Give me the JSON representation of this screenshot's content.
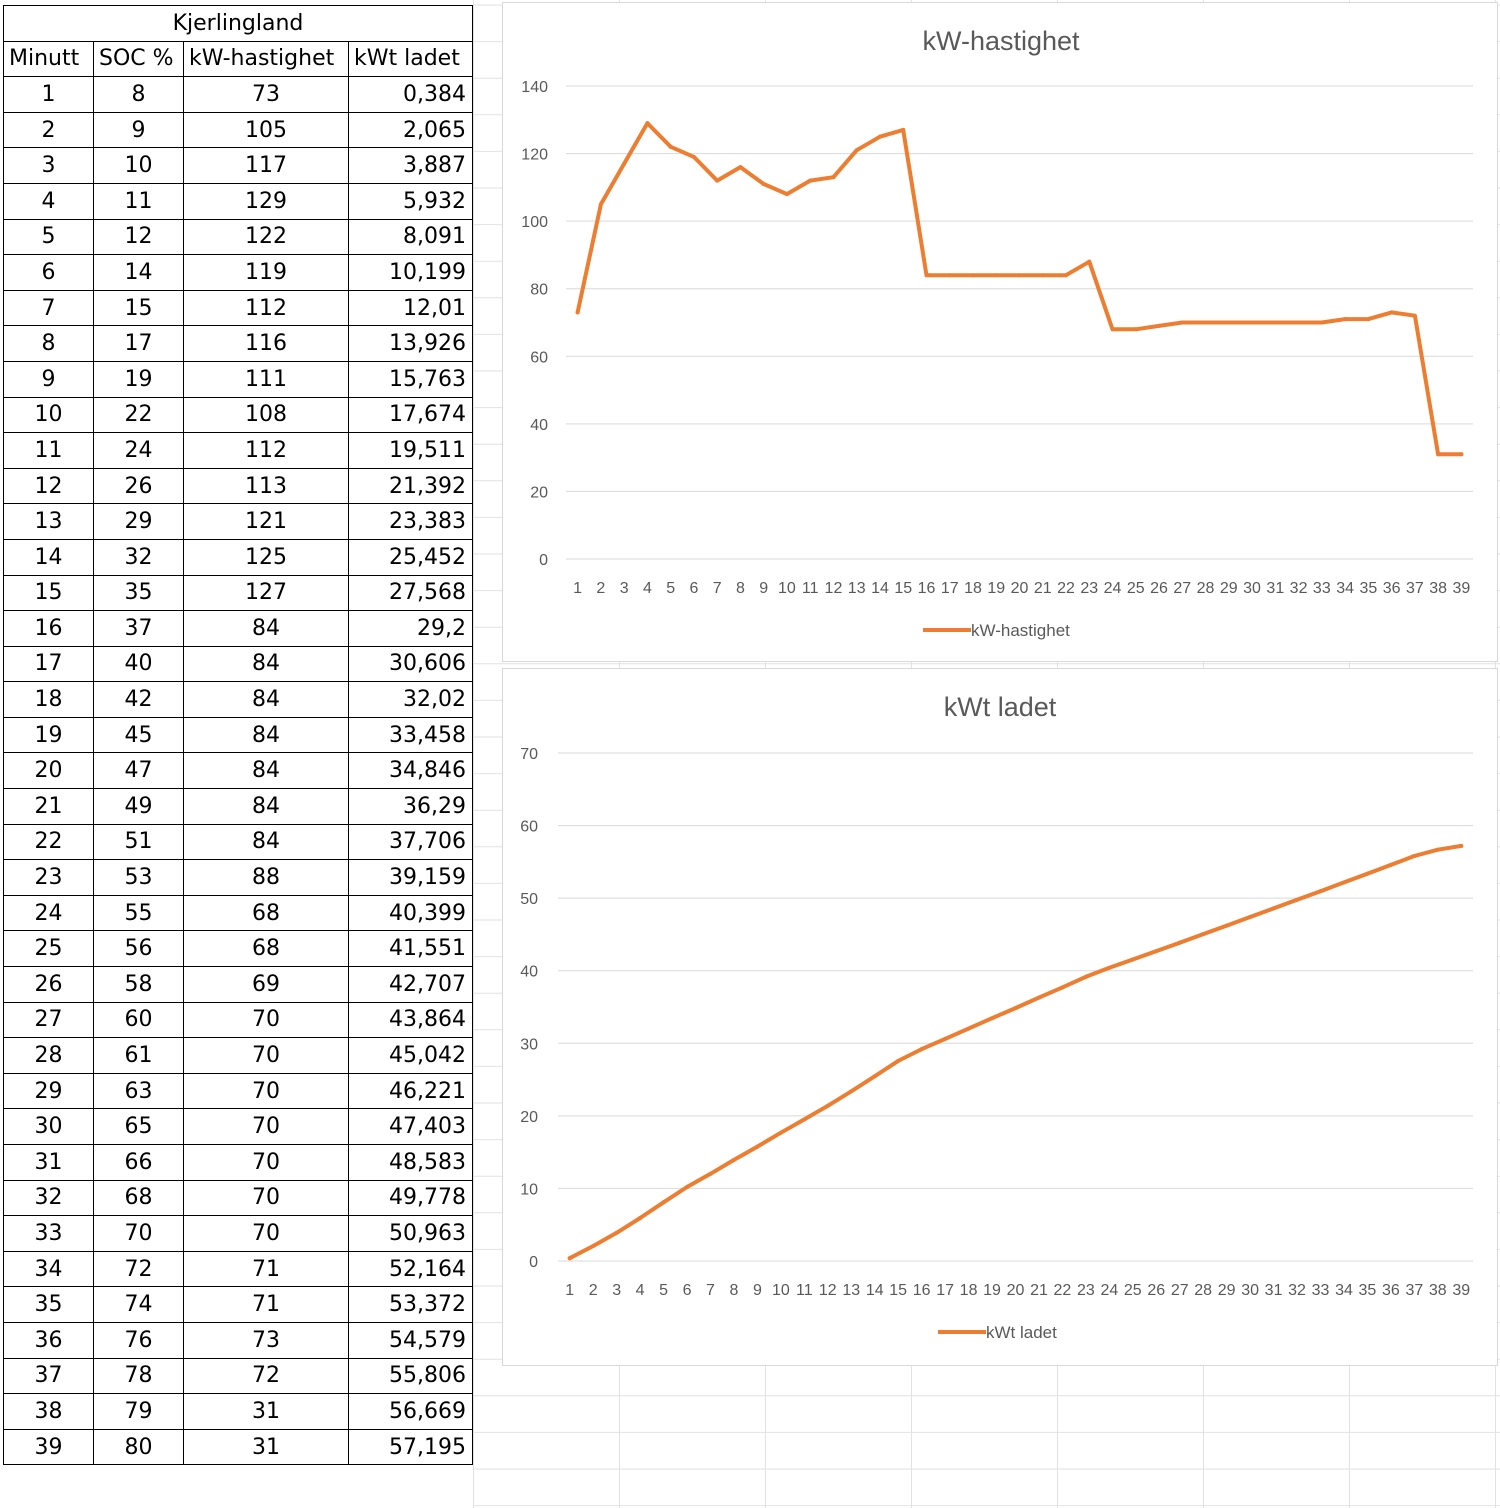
{
  "table": {
    "title": "Kjerlingland",
    "headers": [
      "Minutt",
      "SOC %",
      "kW-hastighet",
      "kWt ladet"
    ],
    "rows": [
      [
        "1",
        "8",
        "73",
        "0,384"
      ],
      [
        "2",
        "9",
        "105",
        "2,065"
      ],
      [
        "3",
        "10",
        "117",
        "3,887"
      ],
      [
        "4",
        "11",
        "129",
        "5,932"
      ],
      [
        "5",
        "12",
        "122",
        "8,091"
      ],
      [
        "6",
        "14",
        "119",
        "10,199"
      ],
      [
        "7",
        "15",
        "112",
        "12,01"
      ],
      [
        "8",
        "17",
        "116",
        "13,926"
      ],
      [
        "9",
        "19",
        "111",
        "15,763"
      ],
      [
        "10",
        "22",
        "108",
        "17,674"
      ],
      [
        "11",
        "24",
        "112",
        "19,511"
      ],
      [
        "12",
        "26",
        "113",
        "21,392"
      ],
      [
        "13",
        "29",
        "121",
        "23,383"
      ],
      [
        "14",
        "32",
        "125",
        "25,452"
      ],
      [
        "15",
        "35",
        "127",
        "27,568"
      ],
      [
        "16",
        "37",
        "84",
        "29,2"
      ],
      [
        "17",
        "40",
        "84",
        "30,606"
      ],
      [
        "18",
        "42",
        "84",
        "32,02"
      ],
      [
        "19",
        "45",
        "84",
        "33,458"
      ],
      [
        "20",
        "47",
        "84",
        "34,846"
      ],
      [
        "21",
        "49",
        "84",
        "36,29"
      ],
      [
        "22",
        "51",
        "84",
        "37,706"
      ],
      [
        "23",
        "53",
        "88",
        "39,159"
      ],
      [
        "24",
        "55",
        "68",
        "40,399"
      ],
      [
        "25",
        "56",
        "68",
        "41,551"
      ],
      [
        "26",
        "58",
        "69",
        "42,707"
      ],
      [
        "27",
        "60",
        "70",
        "43,864"
      ],
      [
        "28",
        "61",
        "70",
        "45,042"
      ],
      [
        "29",
        "63",
        "70",
        "46,221"
      ],
      [
        "30",
        "65",
        "70",
        "47,403"
      ],
      [
        "31",
        "66",
        "70",
        "48,583"
      ],
      [
        "32",
        "68",
        "70",
        "49,778"
      ],
      [
        "33",
        "70",
        "70",
        "50,963"
      ],
      [
        "34",
        "72",
        "71",
        "52,164"
      ],
      [
        "35",
        "74",
        "71",
        "53,372"
      ],
      [
        "36",
        "76",
        "73",
        "54,579"
      ],
      [
        "37",
        "78",
        "72",
        "55,806"
      ],
      [
        "38",
        "79",
        "31",
        "56,669"
      ],
      [
        "39",
        "80",
        "31",
        "57,195"
      ]
    ]
  },
  "colors": {
    "series": "#ed7d31",
    "gridline": "#d9d9d9",
    "text": "#595959",
    "cell_border": "#000000"
  },
  "chart_data": [
    {
      "type": "line",
      "title": "kW-hastighet",
      "x": [
        1,
        2,
        3,
        4,
        5,
        6,
        7,
        8,
        9,
        10,
        11,
        12,
        13,
        14,
        15,
        16,
        17,
        18,
        19,
        20,
        21,
        22,
        23,
        24,
        25,
        26,
        27,
        28,
        29,
        30,
        31,
        32,
        33,
        34,
        35,
        36,
        37,
        38,
        39
      ],
      "series": [
        {
          "name": "kW-hastighet",
          "values": [
            73,
            105,
            117,
            129,
            122,
            119,
            112,
            116,
            111,
            108,
            112,
            113,
            121,
            125,
            127,
            84,
            84,
            84,
            84,
            84,
            84,
            84,
            88,
            68,
            68,
            69,
            70,
            70,
            70,
            70,
            70,
            70,
            70,
            71,
            71,
            73,
            72,
            31,
            31
          ]
        }
      ],
      "ylim": [
        0,
        140
      ],
      "yticks": [
        0,
        20,
        40,
        60,
        80,
        100,
        120,
        140
      ],
      "grid": true,
      "legend": "bottom"
    },
    {
      "type": "line",
      "title": "kWt ladet",
      "x": [
        1,
        2,
        3,
        4,
        5,
        6,
        7,
        8,
        9,
        10,
        11,
        12,
        13,
        14,
        15,
        16,
        17,
        18,
        19,
        20,
        21,
        22,
        23,
        24,
        25,
        26,
        27,
        28,
        29,
        30,
        31,
        32,
        33,
        34,
        35,
        36,
        37,
        38,
        39
      ],
      "series": [
        {
          "name": "kWt ladet",
          "values": [
            0.384,
            2.065,
            3.887,
            5.932,
            8.091,
            10.199,
            12.01,
            13.926,
            15.763,
            17.674,
            19.511,
            21.392,
            23.383,
            25.452,
            27.568,
            29.2,
            30.606,
            32.02,
            33.458,
            34.846,
            36.29,
            37.706,
            39.159,
            40.399,
            41.551,
            42.707,
            43.864,
            45.042,
            46.221,
            47.403,
            48.583,
            49.778,
            50.963,
            52.164,
            53.372,
            54.579,
            55.806,
            56.669,
            57.195
          ]
        }
      ],
      "ylim": [
        0,
        70
      ],
      "yticks": [
        0,
        10,
        20,
        30,
        40,
        50,
        60,
        70
      ],
      "grid": true,
      "legend": "bottom"
    }
  ]
}
